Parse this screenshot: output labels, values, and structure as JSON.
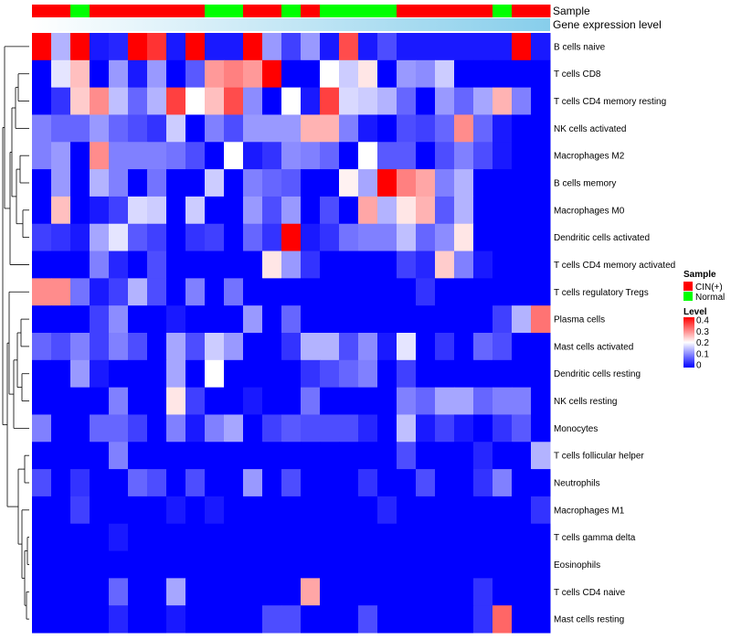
{
  "chart_data": {
    "type": "heatmap",
    "title": "",
    "annotation_tracks": [
      "Sample",
      "Gene expression level"
    ],
    "samples": [
      "CIN(+)",
      "CIN(+)",
      "Normal",
      "CIN(+)",
      "CIN(+)",
      "CIN(+)",
      "CIN(+)",
      "CIN(+)",
      "CIN(+)",
      "Normal",
      "Normal",
      "CIN(+)",
      "CIN(+)",
      "Normal",
      "CIN(+)",
      "Normal",
      "Normal",
      "Normal",
      "Normal",
      "CIN(+)",
      "CIN(+)",
      "CIN(+)",
      "CIN(+)",
      "CIN(+)",
      "Normal",
      "CIN(+)",
      "CIN(+)"
    ],
    "expression_gradient": [
      "#ffffff",
      "#87ceeb"
    ],
    "rows": [
      "B cells naive",
      "T cells CD8",
      "T cells CD4 memory resting",
      "NK cells activated",
      "Macrophages M2",
      "B cells memory",
      "Macrophages M0",
      "Dendritic cells activated",
      "T cells CD4 memory activated",
      "T cells regulatory  Tregs",
      "Plasma cells",
      "Mast cells activated",
      "Dendritic cells resting",
      "NK cells resting",
      "Monocytes",
      "T cells follicular helper",
      "Neutrophils",
      "Macrophages M1",
      "T cells gamma delta",
      "Eosinophils",
      "T cells CD4 naive",
      "Mast cells resting"
    ],
    "values": [
      [
        0.42,
        0.14,
        0.42,
        0.02,
        0.03,
        0.4,
        0.36,
        0.02,
        0.42,
        0.02,
        0.02,
        0.4,
        0.12,
        0.05,
        0.12,
        0.02,
        0.34,
        0.02,
        0.06,
        0.02,
        0.02,
        0.02,
        0.02,
        0.02,
        0.02,
        0.4,
        0.02
      ],
      [
        0.0,
        0.18,
        0.25,
        0.0,
        0.12,
        0.02,
        0.12,
        0.0,
        0.07,
        0.28,
        0.3,
        0.28,
        0.42,
        0.0,
        0.0,
        0.2,
        0.16,
        0.22,
        0.0,
        0.12,
        0.11,
        0.16,
        0.0,
        0.0,
        0.0,
        0.0,
        0.0
      ],
      [
        0.0,
        0.04,
        0.24,
        0.29,
        0.15,
        0.08,
        0.14,
        0.35,
        0.2,
        0.25,
        0.34,
        0.11,
        0.0,
        0.2,
        0.02,
        0.35,
        0.17,
        0.16,
        0.14,
        0.08,
        0.0,
        0.12,
        0.08,
        0.13,
        0.26,
        0.1,
        0.0
      ],
      [
        0.1,
        0.08,
        0.08,
        0.12,
        0.08,
        0.06,
        0.04,
        0.16,
        0.0,
        0.1,
        0.06,
        0.12,
        0.12,
        0.12,
        0.26,
        0.26,
        0.1,
        0.02,
        0.0,
        0.06,
        0.05,
        0.08,
        0.29,
        0.08,
        0.02,
        0.0,
        0.0
      ],
      [
        0.1,
        0.12,
        0.0,
        0.29,
        0.1,
        0.1,
        0.1,
        0.09,
        0.06,
        0.0,
        0.2,
        0.02,
        0.04,
        0.11,
        0.1,
        0.08,
        0.0,
        0.2,
        0.07,
        0.07,
        0.0,
        0.06,
        0.1,
        0.06,
        0.02,
        0.0,
        0.0
      ],
      [
        0.0,
        0.12,
        0.0,
        0.14,
        0.1,
        0.0,
        0.09,
        0.0,
        0.0,
        0.16,
        0.0,
        0.1,
        0.08,
        0.07,
        0.0,
        0.0,
        0.21,
        0.13,
        0.42,
        0.3,
        0.27,
        0.1,
        0.14,
        0.0,
        0.0,
        0.0,
        0.0
      ],
      [
        0.0,
        0.25,
        0.0,
        0.02,
        0.05,
        0.17,
        0.16,
        0.0,
        0.16,
        0.0,
        0.0,
        0.12,
        0.06,
        0.12,
        0.0,
        0.06,
        0.0,
        0.27,
        0.14,
        0.22,
        0.26,
        0.07,
        0.14,
        0.0,
        0.0,
        0.0,
        0.0
      ],
      [
        0.05,
        0.04,
        0.02,
        0.13,
        0.18,
        0.07,
        0.05,
        0.0,
        0.04,
        0.05,
        0.0,
        0.08,
        0.04,
        0.42,
        0.02,
        0.04,
        0.09,
        0.1,
        0.1,
        0.15,
        0.08,
        0.11,
        0.22,
        0.0,
        0.0,
        0.0,
        0.0
      ],
      [
        0.0,
        0.0,
        0.0,
        0.1,
        0.03,
        0.0,
        0.06,
        0.0,
        0.0,
        0.0,
        0.0,
        0.0,
        0.22,
        0.12,
        0.04,
        0.0,
        0.0,
        0.0,
        0.0,
        0.05,
        0.03,
        0.24,
        0.1,
        0.02,
        0.0,
        0.0,
        0.0
      ],
      [
        0.29,
        0.29,
        0.09,
        0.02,
        0.05,
        0.14,
        0.06,
        0.0,
        0.1,
        0.0,
        0.09,
        0.0,
        0.0,
        0.0,
        0.0,
        0.0,
        0.0,
        0.0,
        0.0,
        0.0,
        0.04,
        0.0,
        0.0,
        0.0,
        0.0,
        0.0,
        0.0
      ],
      [
        0.0,
        0.0,
        0.0,
        0.05,
        0.11,
        0.0,
        0.0,
        0.02,
        0.0,
        0.0,
        0.0,
        0.12,
        0.0,
        0.08,
        0.0,
        0.0,
        0.0,
        0.0,
        0.0,
        0.0,
        0.0,
        0.0,
        0.0,
        0.0,
        0.05,
        0.14,
        0.31
      ],
      [
        0.08,
        0.06,
        0.1,
        0.05,
        0.1,
        0.06,
        0.0,
        0.13,
        0.06,
        0.16,
        0.12,
        0.0,
        0.0,
        0.04,
        0.14,
        0.14,
        0.06,
        0.11,
        0.02,
        0.18,
        0.0,
        0.04,
        0.0,
        0.08,
        0.06,
        0.0,
        0.0
      ],
      [
        0.0,
        0.0,
        0.12,
        0.02,
        0.0,
        0.0,
        0.0,
        0.13,
        0.0,
        0.2,
        0.0,
        0.0,
        0.0,
        0.0,
        0.04,
        0.06,
        0.08,
        0.1,
        0.0,
        0.05,
        0.0,
        0.0,
        0.0,
        0.0,
        0.0,
        0.0,
        0.0
      ],
      [
        0.0,
        0.0,
        0.0,
        0.0,
        0.1,
        0.0,
        0.0,
        0.22,
        0.05,
        0.0,
        0.0,
        0.02,
        0.0,
        0.0,
        0.09,
        0.0,
        0.0,
        0.0,
        0.0,
        0.1,
        0.08,
        0.13,
        0.13,
        0.08,
        0.1,
        0.1,
        0.0
      ],
      [
        0.1,
        0.0,
        0.0,
        0.08,
        0.08,
        0.05,
        0.0,
        0.1,
        0.02,
        0.1,
        0.13,
        0.0,
        0.05,
        0.07,
        0.06,
        0.06,
        0.06,
        0.03,
        0.0,
        0.15,
        0.02,
        0.05,
        0.02,
        0.0,
        0.04,
        0.07,
        0.0
      ],
      [
        0.0,
        0.0,
        0.0,
        0.0,
        0.1,
        0.0,
        0.0,
        0.0,
        0.0,
        0.0,
        0.0,
        0.0,
        0.0,
        0.0,
        0.0,
        0.0,
        0.0,
        0.0,
        0.0,
        0.06,
        0.0,
        0.0,
        0.0,
        0.03,
        0.0,
        0.0,
        0.14
      ],
      [
        0.06,
        0.0,
        0.04,
        0.0,
        0.0,
        0.08,
        0.06,
        0.0,
        0.06,
        0.0,
        0.0,
        0.12,
        0.0,
        0.06,
        0.0,
        0.0,
        0.0,
        0.04,
        0.0,
        0.0,
        0.06,
        0.0,
        0.0,
        0.04,
        0.1,
        0.0,
        0.0
      ],
      [
        0.0,
        0.0,
        0.05,
        0.0,
        0.0,
        0.0,
        0.0,
        0.02,
        0.0,
        0.02,
        0.0,
        0.0,
        0.0,
        0.0,
        0.0,
        0.0,
        0.0,
        0.0,
        0.03,
        0.0,
        0.0,
        0.0,
        0.0,
        0.0,
        0.0,
        0.0,
        0.04
      ],
      [
        0.0,
        0.0,
        0.0,
        0.0,
        0.02,
        0.0,
        0.0,
        0.0,
        0.0,
        0.0,
        0.0,
        0.0,
        0.0,
        0.0,
        0.0,
        0.0,
        0.0,
        0.0,
        0.0,
        0.0,
        0.0,
        0.0,
        0.0,
        0.0,
        0.0,
        0.0,
        0.0
      ],
      [
        0.0,
        0.0,
        0.0,
        0.0,
        0.0,
        0.0,
        0.0,
        0.0,
        0.0,
        0.0,
        0.0,
        0.0,
        0.0,
        0.0,
        0.0,
        0.0,
        0.0,
        0.0,
        0.0,
        0.0,
        0.0,
        0.0,
        0.0,
        0.0,
        0.0,
        0.0,
        0.0
      ],
      [
        0.0,
        0.0,
        0.0,
        0.0,
        0.08,
        0.0,
        0.0,
        0.13,
        0.0,
        0.0,
        0.0,
        0.0,
        0.0,
        0.0,
        0.27,
        0.0,
        0.0,
        0.0,
        0.0,
        0.0,
        0.0,
        0.0,
        0.0,
        0.04,
        0.0,
        0.0,
        0.0
      ],
      [
        0.0,
        0.0,
        0.0,
        0.0,
        0.03,
        0.0,
        0.0,
        0.02,
        0.0,
        0.0,
        0.0,
        0.0,
        0.06,
        0.06,
        0.0,
        0.0,
        0.0,
        0.06,
        0.0,
        0.0,
        0.0,
        0.0,
        0.0,
        0.04,
        0.32,
        0.0,
        0.0
      ]
    ],
    "color_scale": {
      "min": 0,
      "max": 0.4,
      "low": "#0000ff",
      "mid": "#ffffff",
      "high": "#ff0000",
      "mid_value": 0.2
    },
    "legend": {
      "sample_title": "Sample",
      "sample_items": [
        {
          "label": "CIN(+)",
          "color": "#ff0000"
        },
        {
          "label": "Normal",
          "color": "#00ff00"
        }
      ],
      "level_title": "Level",
      "level_ticks": [
        "0.4",
        "0.3",
        "0.2",
        "0.1",
        "0"
      ],
      "position": "right"
    }
  }
}
